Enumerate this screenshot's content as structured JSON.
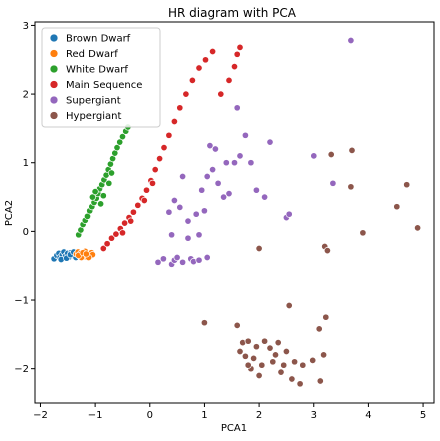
{
  "chart_data": {
    "type": "scatter",
    "title": "HR diagram with PCA",
    "xlabel": "PCA1",
    "ylabel": "PCA2",
    "xlim": [
      -2.1,
      5.2
    ],
    "ylim": [
      -2.5,
      3.05
    ],
    "xticks": [
      -2,
      -1,
      0,
      1,
      2,
      3,
      4,
      5
    ],
    "yticks": [
      -2,
      -1,
      0,
      1,
      2,
      3
    ],
    "xtick_labels": [
      "−2",
      "−1",
      "0",
      "1",
      "2",
      "3",
      "4",
      "5"
    ],
    "ytick_labels": [
      "−2",
      "−1",
      "0",
      "1",
      "2",
      "3"
    ],
    "grid": false,
    "legend_position": "upper-left",
    "series": [
      {
        "name": "Brown Dwarf",
        "color": "#1f77b4",
        "points": [
          [
            -1.75,
            -0.4
          ],
          [
            -1.7,
            -0.35
          ],
          [
            -1.66,
            -0.32
          ],
          [
            -1.64,
            -0.38
          ],
          [
            -1.6,
            -0.34
          ],
          [
            -1.57,
            -0.3
          ],
          [
            -1.54,
            -0.36
          ],
          [
            -1.5,
            -0.32
          ],
          [
            -1.47,
            -0.37
          ],
          [
            -1.44,
            -0.31
          ],
          [
            -1.41,
            -0.35
          ],
          [
            -1.38,
            -0.33
          ],
          [
            -1.35,
            -0.38
          ],
          [
            -1.31,
            -0.32
          ],
          [
            -1.28,
            -0.35
          ],
          [
            -1.25,
            -0.37
          ],
          [
            -1.62,
            -0.41
          ],
          [
            -1.52,
            -0.39
          ],
          [
            -1.45,
            -0.34
          ],
          [
            -1.39,
            -0.3
          ]
        ]
      },
      {
        "name": "Red Dwarf",
        "color": "#ff7f0e",
        "points": [
          [
            -1.34,
            -0.33
          ],
          [
            -1.31,
            -0.3
          ],
          [
            -1.28,
            -0.36
          ],
          [
            -1.26,
            -0.32
          ],
          [
            -1.23,
            -0.35
          ],
          [
            -1.21,
            -0.3
          ],
          [
            -1.19,
            -0.34
          ],
          [
            -1.17,
            -0.37
          ],
          [
            -1.15,
            -0.31
          ],
          [
            -1.13,
            -0.35
          ],
          [
            -1.11,
            -0.32
          ],
          [
            -1.09,
            -0.36
          ],
          [
            -1.07,
            -0.31
          ],
          [
            -1.05,
            -0.34
          ],
          [
            -1.25,
            -0.38
          ],
          [
            -1.18,
            -0.29
          ],
          [
            -1.12,
            -0.38
          ],
          [
            -1.3,
            -0.35
          ],
          [
            -1.22,
            -0.31
          ],
          [
            -1.16,
            -0.33
          ]
        ]
      },
      {
        "name": "White Dwarf",
        "color": "#2ca02c",
        "points": [
          [
            -1.3,
            -0.05
          ],
          [
            -1.26,
            0.02
          ],
          [
            -1.22,
            0.1
          ],
          [
            -1.18,
            0.16
          ],
          [
            -1.14,
            0.22
          ],
          [
            -1.1,
            0.3
          ],
          [
            -1.06,
            0.36
          ],
          [
            -1.02,
            0.42
          ],
          [
            -0.98,
            0.48
          ],
          [
            -0.95,
            0.55
          ],
          [
            -0.92,
            0.62
          ],
          [
            -0.88,
            0.68
          ],
          [
            -0.84,
            0.75
          ],
          [
            -0.8,
            0.82
          ],
          [
            -0.76,
            0.9
          ],
          [
            -0.72,
            0.98
          ],
          [
            -0.68,
            1.06
          ],
          [
            -0.64,
            1.14
          ],
          [
            -0.6,
            1.22
          ],
          [
            -0.55,
            1.3
          ],
          [
            -0.5,
            1.38
          ],
          [
            -0.44,
            1.46
          ],
          [
            -0.4,
            1.52
          ],
          [
            -1.0,
            0.58
          ],
          [
            -0.9,
            0.4
          ],
          [
            -0.85,
            0.52
          ],
          [
            -1.05,
            0.5
          ],
          [
            -0.75,
            0.7
          ],
          [
            -0.7,
            0.85
          ]
        ]
      },
      {
        "name": "Main Sequence",
        "color": "#d62728",
        "points": [
          [
            -0.85,
            -0.25
          ],
          [
            -0.78,
            -0.18
          ],
          [
            -0.7,
            -0.1
          ],
          [
            -0.62,
            -0.04
          ],
          [
            -0.54,
            0.04
          ],
          [
            -0.46,
            0.12
          ],
          [
            -0.38,
            0.2
          ],
          [
            -0.3,
            0.28
          ],
          [
            -0.22,
            0.38
          ],
          [
            -0.14,
            0.48
          ],
          [
            -0.06,
            0.6
          ],
          [
            0.02,
            0.74
          ],
          [
            0.1,
            0.9
          ],
          [
            0.18,
            1.06
          ],
          [
            0.26,
            1.22
          ],
          [
            0.35,
            1.4
          ],
          [
            0.45,
            1.6
          ],
          [
            0.55,
            1.8
          ],
          [
            0.66,
            2.0
          ],
          [
            0.78,
            2.2
          ],
          [
            0.9,
            2.38
          ],
          [
            1.02,
            2.5
          ],
          [
            1.15,
            2.62
          ],
          [
            1.3,
            2.0
          ],
          [
            1.45,
            2.2
          ],
          [
            1.55,
            2.4
          ],
          [
            1.6,
            2.58
          ],
          [
            1.65,
            2.68
          ],
          [
            -0.5,
            -0.02
          ],
          [
            -0.35,
            0.15
          ],
          [
            -0.1,
            0.45
          ],
          [
            0.05,
            0.7
          ]
        ]
      },
      {
        "name": "Supergiant",
        "color": "#9467bd",
        "points": [
          [
            3.68,
            2.78
          ],
          [
            0.15,
            -0.45
          ],
          [
            0.25,
            -0.4
          ],
          [
            0.4,
            -0.48
          ],
          [
            0.45,
            -0.42
          ],
          [
            0.5,
            -0.38
          ],
          [
            0.6,
            -0.45
          ],
          [
            0.75,
            -0.4
          ],
          [
            0.8,
            -0.44
          ],
          [
            0.9,
            -0.42
          ],
          [
            1.05,
            -0.38
          ],
          [
            0.35,
            0.28
          ],
          [
            0.45,
            0.45
          ],
          [
            0.55,
            0.35
          ],
          [
            0.7,
            0.15
          ],
          [
            0.85,
            0.25
          ],
          [
            0.95,
            0.6
          ],
          [
            1.05,
            0.8
          ],
          [
            1.1,
            1.25
          ],
          [
            1.15,
            0.9
          ],
          [
            1.25,
            0.7
          ],
          [
            1.35,
            0.5
          ],
          [
            1.45,
            0.55
          ],
          [
            1.55,
            1.0
          ],
          [
            1.65,
            1.1
          ],
          [
            1.75,
            1.4
          ],
          [
            1.85,
            1.0
          ],
          [
            1.95,
            0.6
          ],
          [
            2.2,
            1.3
          ],
          [
            2.5,
            0.2
          ],
          [
            2.55,
            0.25
          ],
          [
            3.0,
            1.1
          ],
          [
            3.35,
            0.7
          ],
          [
            0.4,
            -0.05
          ],
          [
            0.6,
            0.8
          ],
          [
            0.7,
            -0.1
          ],
          [
            1.2,
            1.2
          ],
          [
            1.4,
            1.0
          ],
          [
            1.6,
            1.8
          ],
          [
            2.1,
            0.5
          ],
          [
            1.0,
            0.3
          ],
          [
            0.9,
            -0.05
          ]
        ]
      },
      {
        "name": "Hypergiant",
        "color": "#8c564b",
        "points": [
          [
            3.7,
            1.18
          ],
          [
            3.32,
            1.12
          ],
          [
            3.68,
            0.65
          ],
          [
            4.7,
            0.68
          ],
          [
            4.52,
            0.36
          ],
          [
            4.9,
            0.05
          ],
          [
            3.9,
            -0.02
          ],
          [
            3.2,
            -0.22
          ],
          [
            3.25,
            -0.28
          ],
          [
            2.0,
            -0.25
          ],
          [
            2.55,
            -1.08
          ],
          [
            1.0,
            -1.33
          ],
          [
            1.6,
            -1.37
          ],
          [
            3.22,
            -1.25
          ],
          [
            3.1,
            -1.42
          ],
          [
            1.7,
            -1.62
          ],
          [
            1.8,
            -1.6
          ],
          [
            1.95,
            -1.68
          ],
          [
            2.1,
            -1.6
          ],
          [
            2.2,
            -1.7
          ],
          [
            2.35,
            -1.62
          ],
          [
            2.5,
            -1.75
          ],
          [
            2.65,
            -1.9
          ],
          [
            2.8,
            -1.95
          ],
          [
            2.98,
            -1.88
          ],
          [
            3.18,
            -1.8
          ],
          [
            1.75,
            -1.82
          ],
          [
            1.9,
            -1.85
          ],
          [
            2.05,
            -1.95
          ],
          [
            2.25,
            -1.9
          ],
          [
            2.4,
            -2.05
          ],
          [
            2.6,
            -2.15
          ],
          [
            2.75,
            -2.22
          ],
          [
            3.12,
            -2.18
          ],
          [
            1.85,
            -2.0
          ],
          [
            2.0,
            -2.1
          ],
          [
            1.65,
            -1.75
          ],
          [
            2.3,
            -1.8
          ],
          [
            2.45,
            -1.95
          ],
          [
            1.8,
            -1.95
          ]
        ]
      }
    ]
  }
}
